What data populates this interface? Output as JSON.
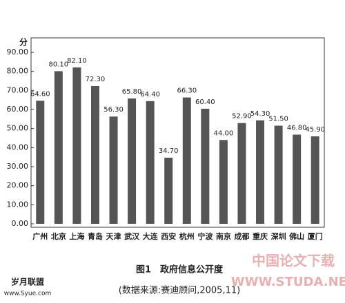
{
  "chart_data": {
    "type": "bar",
    "title": "图1　政府信息公开度",
    "subtitle": "(数据来源:赛迪顾问,2005,11)",
    "y_label": "分",
    "categories": [
      "广州",
      "北京",
      "上海",
      "青岛",
      "天津",
      "武汉",
      "大连",
      "西安",
      "杭州",
      "宁波",
      "南京",
      "成都",
      "重庆",
      "深圳",
      "佛山",
      "厦门"
    ],
    "values": [
      64.6,
      80.1,
      82.1,
      72.3,
      56.3,
      65.8,
      64.4,
      34.7,
      66.3,
      60.4,
      44.0,
      52.9,
      54.3,
      51.5,
      46.8,
      45.9
    ],
    "value_labels": [
      "64.60",
      "80.10",
      "82.10",
      "72.30",
      "56.30",
      "65.80",
      "64.40",
      "34.70",
      "66.30",
      "60.40",
      "44.00",
      "52.90",
      "54.30",
      "51.50",
      "46.80",
      "45.90"
    ],
    "color": "#555555",
    "ylim": [
      0,
      90
    ],
    "yticks": [
      {
        "value": 0,
        "label": "0.00"
      },
      {
        "value": 10,
        "label": "10.00"
      },
      {
        "value": 20,
        "label": "20.00"
      },
      {
        "value": 30,
        "label": "30.00"
      },
      {
        "value": 40,
        "label": "40.00"
      },
      {
        "value": 50,
        "label": "50.00"
      },
      {
        "value": 60,
        "label": "60.00"
      },
      {
        "value": 70,
        "label": "70.00"
      },
      {
        "value": 80,
        "label": "80.00"
      },
      {
        "value": 90,
        "label": "90.00"
      }
    ],
    "grid": false
  },
  "watermarks": [
    "岁月联盟",
    "www.Syue.com",
    "中国论文下载",
    "WWW.STUDA.NET"
  ]
}
